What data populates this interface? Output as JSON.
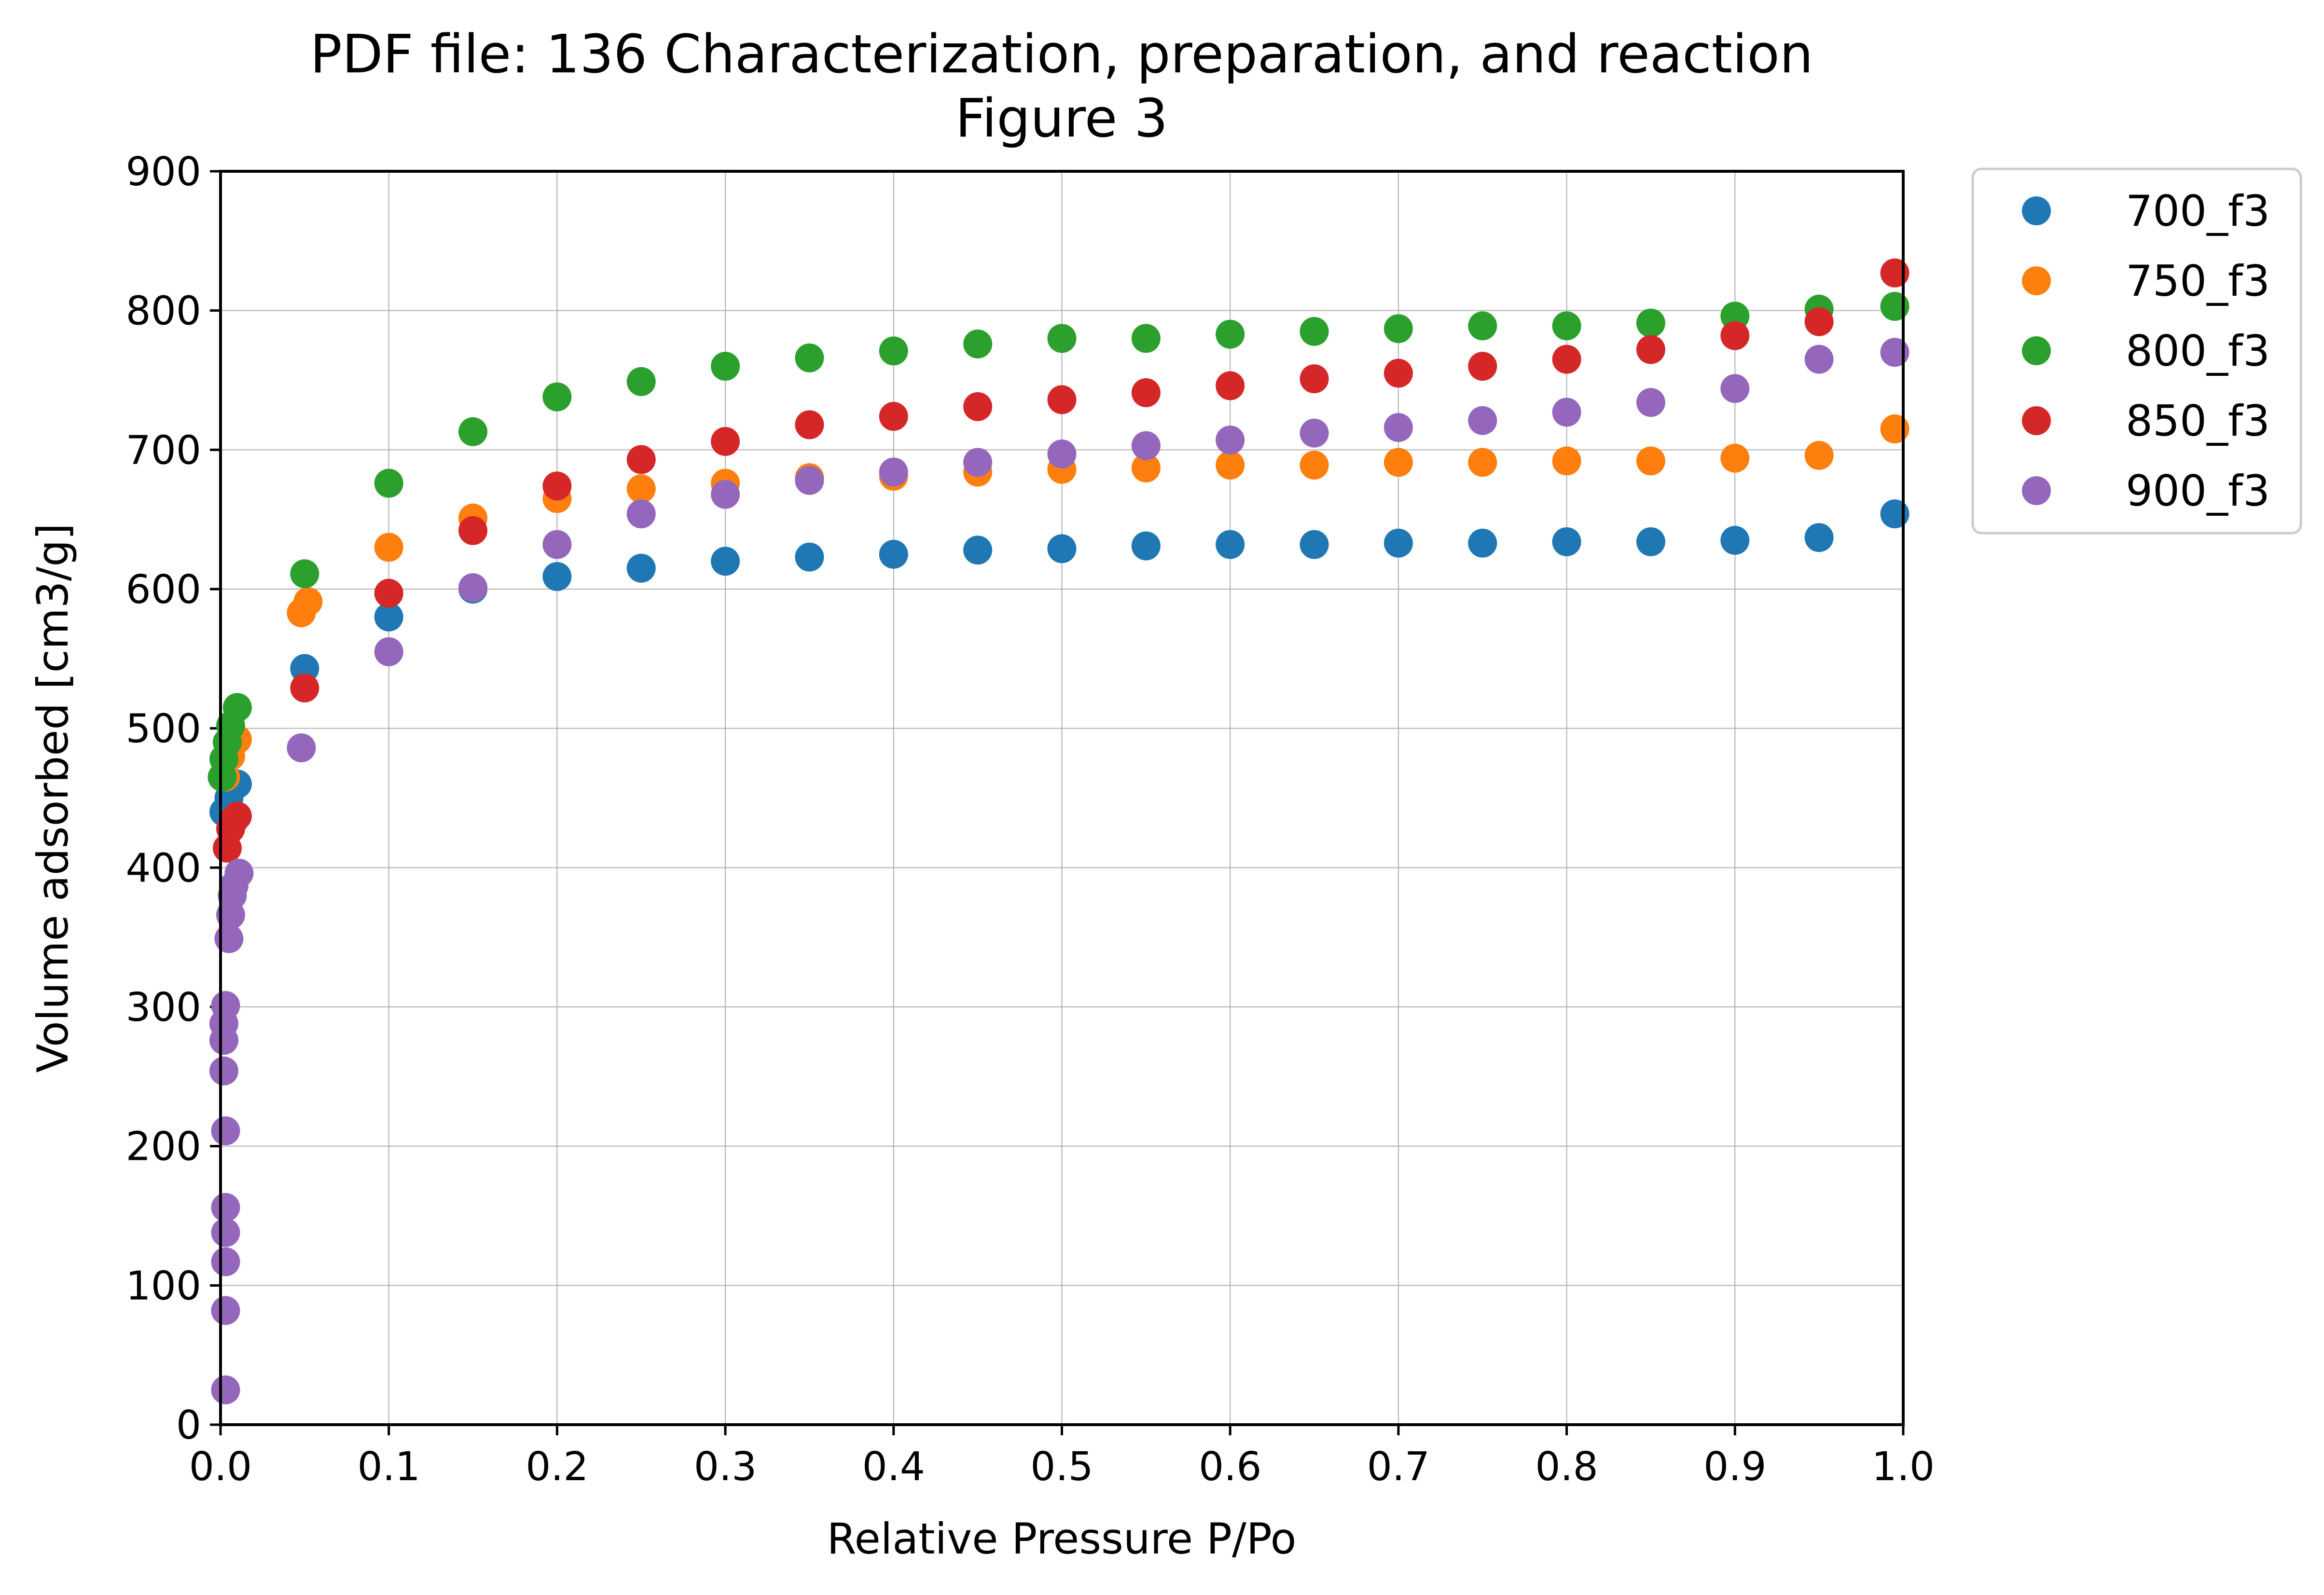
{
  "chart_data": {
    "type": "scatter",
    "title": "PDF file: 136 Characterization, preparation, and reaction",
    "subtitle": "Figure 3",
    "xlabel": "Relative Pressure P/Po",
    "ylabel": "Volume adsorbed [cm3/g]",
    "xlim": [
      0.0,
      1.0
    ],
    "ylim": [
      0,
      900
    ],
    "xticks": [
      "0.0",
      "0.1",
      "0.2",
      "0.3",
      "0.4",
      "0.5",
      "0.6",
      "0.7",
      "0.8",
      "0.9",
      "1.0"
    ],
    "yticks": [
      "0",
      "100",
      "200",
      "300",
      "400",
      "500",
      "600",
      "700",
      "800",
      "900"
    ],
    "grid": true,
    "legend_position": "outside-top-right",
    "series": [
      {
        "name": "700_f3",
        "color": "#1f77b4",
        "points": [
          [
            0.002,
            440
          ],
          [
            0.005,
            450
          ],
          [
            0.01,
            460
          ],
          [
            0.05,
            543
          ],
          [
            0.1,
            580
          ],
          [
            0.15,
            600
          ],
          [
            0.2,
            609
          ],
          [
            0.25,
            615
          ],
          [
            0.3,
            620
          ],
          [
            0.35,
            623
          ],
          [
            0.4,
            625
          ],
          [
            0.45,
            628
          ],
          [
            0.5,
            629
          ],
          [
            0.55,
            631
          ],
          [
            0.6,
            632
          ],
          [
            0.65,
            632
          ],
          [
            0.7,
            633
          ],
          [
            0.75,
            633
          ],
          [
            0.8,
            634
          ],
          [
            0.85,
            634
          ],
          [
            0.9,
            635
          ],
          [
            0.95,
            637
          ],
          [
            0.995,
            654
          ]
        ]
      },
      {
        "name": "750_f3",
        "color": "#ff7f0e",
        "points": [
          [
            0.003,
            465
          ],
          [
            0.006,
            480
          ],
          [
            0.01,
            492
          ],
          [
            0.048,
            583
          ],
          [
            0.052,
            591
          ],
          [
            0.1,
            630
          ],
          [
            0.15,
            651
          ],
          [
            0.2,
            665
          ],
          [
            0.25,
            672
          ],
          [
            0.3,
            676
          ],
          [
            0.35,
            680
          ],
          [
            0.4,
            681
          ],
          [
            0.45,
            684
          ],
          [
            0.5,
            686
          ],
          [
            0.55,
            687
          ],
          [
            0.6,
            689
          ],
          [
            0.65,
            689
          ],
          [
            0.7,
            691
          ],
          [
            0.75,
            691
          ],
          [
            0.8,
            692
          ],
          [
            0.85,
            692
          ],
          [
            0.9,
            694
          ],
          [
            0.95,
            696
          ],
          [
            0.995,
            715
          ]
        ]
      },
      {
        "name": "800_f3",
        "color": "#2ca02c",
        "points": [
          [
            0.001,
            465
          ],
          [
            0.002,
            478
          ],
          [
            0.004,
            490
          ],
          [
            0.006,
            502
          ],
          [
            0.01,
            515
          ],
          [
            0.05,
            611
          ],
          [
            0.1,
            676
          ],
          [
            0.15,
            713
          ],
          [
            0.2,
            738
          ],
          [
            0.25,
            749
          ],
          [
            0.3,
            760
          ],
          [
            0.35,
            766
          ],
          [
            0.4,
            771
          ],
          [
            0.45,
            776
          ],
          [
            0.5,
            780
          ],
          [
            0.55,
            780
          ],
          [
            0.6,
            783
          ],
          [
            0.65,
            785
          ],
          [
            0.7,
            787
          ],
          [
            0.75,
            789
          ],
          [
            0.8,
            789
          ],
          [
            0.85,
            791
          ],
          [
            0.9,
            796
          ],
          [
            0.95,
            801
          ],
          [
            0.995,
            803
          ]
        ]
      },
      {
        "name": "850_f3",
        "color": "#d62728",
        "points": [
          [
            0.004,
            414
          ],
          [
            0.006,
            428
          ],
          [
            0.008,
            434
          ],
          [
            0.01,
            437
          ],
          [
            0.05,
            529
          ],
          [
            0.1,
            597
          ],
          [
            0.15,
            642
          ],
          [
            0.2,
            674
          ],
          [
            0.25,
            693
          ],
          [
            0.3,
            706
          ],
          [
            0.35,
            718
          ],
          [
            0.4,
            724
          ],
          [
            0.45,
            731
          ],
          [
            0.5,
            736
          ],
          [
            0.55,
            741
          ],
          [
            0.6,
            746
          ],
          [
            0.65,
            751
          ],
          [
            0.7,
            755
          ],
          [
            0.75,
            760
          ],
          [
            0.8,
            765
          ],
          [
            0.85,
            772
          ],
          [
            0.9,
            782
          ],
          [
            0.95,
            792
          ],
          [
            0.995,
            827
          ]
        ]
      },
      {
        "name": "900_f3",
        "color": "#9467bd",
        "points": [
          [
            0.003,
            25
          ],
          [
            0.003,
            82
          ],
          [
            0.003,
            117
          ],
          [
            0.003,
            138
          ],
          [
            0.003,
            156
          ],
          [
            0.003,
            211
          ],
          [
            0.002,
            254
          ],
          [
            0.002,
            276
          ],
          [
            0.002,
            288
          ],
          [
            0.003,
            301
          ],
          [
            0.005,
            349
          ],
          [
            0.006,
            366
          ],
          [
            0.007,
            380
          ],
          [
            0.008,
            387
          ],
          [
            0.011,
            396
          ],
          [
            0.048,
            486
          ],
          [
            0.1,
            555
          ],
          [
            0.15,
            601
          ],
          [
            0.2,
            632
          ],
          [
            0.25,
            654
          ],
          [
            0.3,
            668
          ],
          [
            0.35,
            678
          ],
          [
            0.4,
            684
          ],
          [
            0.45,
            691
          ],
          [
            0.5,
            697
          ],
          [
            0.55,
            703
          ],
          [
            0.6,
            707
          ],
          [
            0.65,
            712
          ],
          [
            0.7,
            716
          ],
          [
            0.75,
            721
          ],
          [
            0.8,
            727
          ],
          [
            0.85,
            734
          ],
          [
            0.9,
            744
          ],
          [
            0.95,
            765
          ],
          [
            0.995,
            770
          ]
        ]
      }
    ]
  }
}
